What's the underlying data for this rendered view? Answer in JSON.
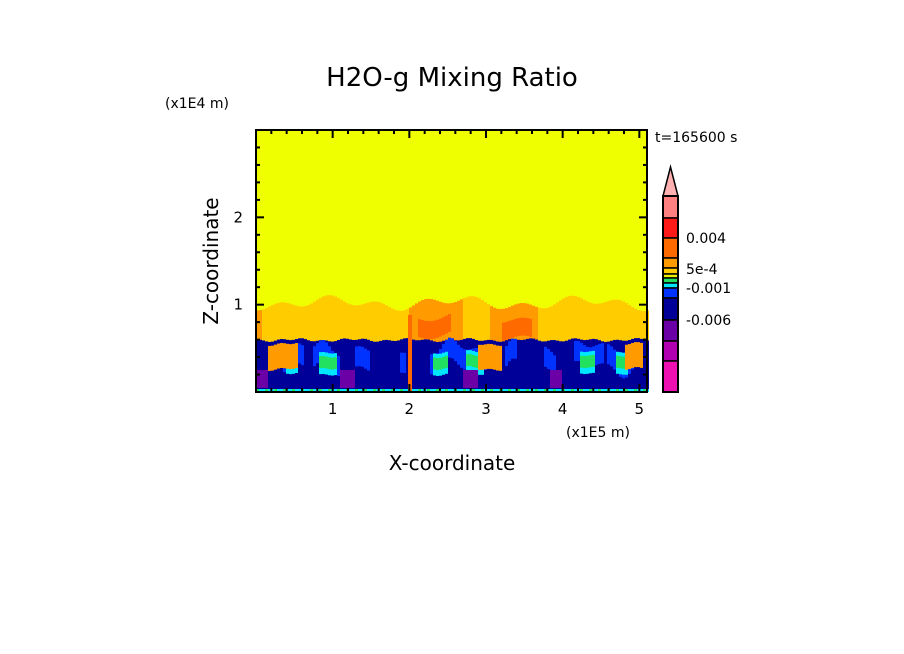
{
  "chart_data": {
    "type": "heatmap",
    "title": "H2O-g Mixing Ratio",
    "xlabel": "X-coordinate",
    "ylabel": "Z-coordinate",
    "x_unit": "(x1E5 m)",
    "y_unit": "(x1E4 m)",
    "time_label": "t=165600 s",
    "xlim": [
      0,
      5.1
    ],
    "ylim": [
      0,
      3
    ],
    "x_ticks": [
      {
        "v": 1,
        "label": "1"
      },
      {
        "v": 2,
        "label": "2"
      },
      {
        "v": 3,
        "label": "3"
      },
      {
        "v": 4,
        "label": "4"
      },
      {
        "v": 5,
        "label": "5"
      }
    ],
    "y_ticks": [
      {
        "v": 1,
        "label": "1"
      },
      {
        "v": 2,
        "label": "2"
      }
    ],
    "background_color": "#f0ff00",
    "colorbar": {
      "colors_top_to_bottom": [
        "#ff8080",
        "#ff1a1a",
        "#ff6a00",
        "#ff9a00",
        "#ffcc00",
        "#e8f000",
        "#22e060",
        "#00e6ff",
        "#0033ff",
        "#000099",
        "#6a00a6",
        "#b000b0",
        "#ee10b0"
      ],
      "extend_color": "#ffb0b0",
      "labels": [
        {
          "text": "0.004",
          "level_index": 2
        },
        {
          "text": "5e-4",
          "level_index": 5
        },
        {
          "text": "-0.001",
          "level_index": 7
        },
        {
          "text": "-0.006",
          "level_index": 10
        }
      ]
    }
  }
}
